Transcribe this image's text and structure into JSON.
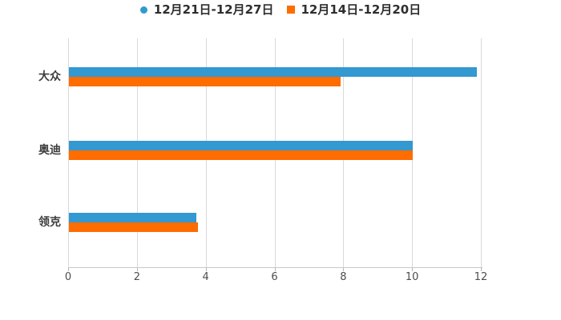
{
  "chart_data": {
    "type": "bar",
    "orientation": "horizontal",
    "title": "",
    "xlabel": "",
    "ylabel": "",
    "categories": [
      "大众",
      "奥迪",
      "领克"
    ],
    "series": [
      {
        "name": "12月21日-12月27日",
        "color": "#3498d1",
        "marker": "circle",
        "values": [
          11.85,
          10,
          3.7
        ]
      },
      {
        "name": "12月14日-12月20日",
        "color": "#ff6c00",
        "marker": "square",
        "values": [
          7.9,
          10,
          3.75
        ]
      }
    ],
    "xlim": [
      0,
      12
    ],
    "xticks": [
      0,
      2,
      4,
      6,
      8,
      10,
      12
    ],
    "grid": true,
    "legend_position": "top",
    "grid_color": "#d9d9d9",
    "axis_color": "#c8c8c8",
    "tick_color": "#b5b5b5",
    "background_color": "#ffffff"
  }
}
